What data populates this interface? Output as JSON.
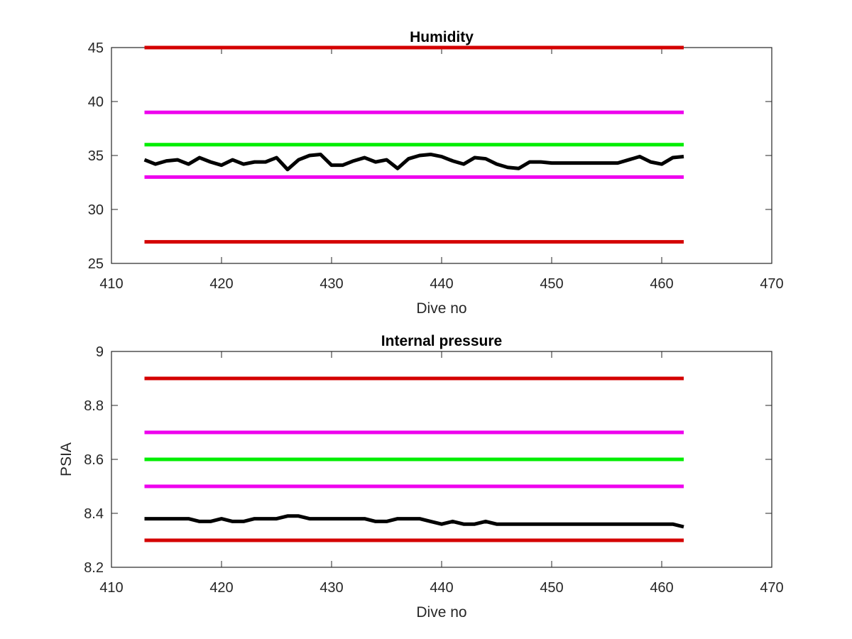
{
  "figure": {
    "background": "#ffffff",
    "axis_color": "#262626"
  },
  "chart_data": [
    {
      "type": "line",
      "title": "Humidity",
      "xlabel": "Dive no",
      "ylabel": "",
      "xlim": [
        410,
        470
      ],
      "ylim": [
        25,
        45
      ],
      "xticks": [
        410,
        420,
        430,
        440,
        450,
        460,
        470
      ],
      "yticks": [
        25,
        30,
        35,
        40,
        45
      ],
      "xtick_labels": [
        "410",
        "420",
        "430",
        "440",
        "450",
        "460",
        "470"
      ],
      "ytick_labels": [
        "25",
        "30",
        "35",
        "40",
        "45"
      ],
      "grid": false,
      "box": true,
      "series": [
        {
          "color": "#d40000",
          "x": [
            413,
            462
          ],
          "y": [
            45,
            45
          ]
        },
        {
          "color": "#ee00ee",
          "x": [
            413,
            462
          ],
          "y": [
            39,
            39
          ]
        },
        {
          "color": "#00ee00",
          "x": [
            413,
            462
          ],
          "y": [
            36,
            36
          ]
        },
        {
          "color": "#ee00ee",
          "x": [
            413,
            462
          ],
          "y": [
            33,
            33
          ]
        },
        {
          "color": "#d40000",
          "x": [
            413,
            462
          ],
          "y": [
            27,
            27
          ]
        },
        {
          "color": "#000000",
          "x": [
            413,
            414,
            415,
            416,
            417,
            418,
            419,
            420,
            421,
            422,
            423,
            424,
            425,
            426,
            427,
            428,
            429,
            430,
            431,
            432,
            433,
            434,
            435,
            436,
            437,
            438,
            439,
            440,
            441,
            442,
            443,
            444,
            445,
            446,
            447,
            448,
            449,
            450,
            451,
            452,
            453,
            454,
            455,
            456,
            457,
            458,
            459,
            460,
            461,
            462
          ],
          "y": [
            34.6,
            34.2,
            34.5,
            34.6,
            34.2,
            34.8,
            34.4,
            34.1,
            34.6,
            34.2,
            34.4,
            34.4,
            34.8,
            33.7,
            34.6,
            35.0,
            35.1,
            34.1,
            34.1,
            34.5,
            34.8,
            34.4,
            34.6,
            33.8,
            34.7,
            35.0,
            35.1,
            34.9,
            34.5,
            34.2,
            34.8,
            34.7,
            34.2,
            33.9,
            33.8,
            34.4,
            34.4,
            34.3,
            34.3,
            34.3,
            34.3,
            34.3,
            34.3,
            34.3,
            34.6,
            34.9,
            34.4,
            34.2,
            34.8,
            34.9
          ]
        }
      ]
    },
    {
      "type": "line",
      "title": "Internal pressure",
      "xlabel": "Dive no",
      "ylabel": "PSIA",
      "xlim": [
        410,
        470
      ],
      "ylim": [
        8.2,
        9
      ],
      "xticks": [
        410,
        420,
        430,
        440,
        450,
        460,
        470
      ],
      "yticks": [
        8.2,
        8.4,
        8.6,
        8.8,
        9
      ],
      "xtick_labels": [
        "410",
        "420",
        "430",
        "440",
        "450",
        "460",
        "470"
      ],
      "ytick_labels": [
        "8.2",
        "8.4",
        "8.6",
        "8.8",
        "9"
      ],
      "grid": false,
      "box": true,
      "series": [
        {
          "color": "#d40000",
          "x": [
            413,
            462
          ],
          "y": [
            8.9,
            8.9
          ]
        },
        {
          "color": "#ee00ee",
          "x": [
            413,
            462
          ],
          "y": [
            8.7,
            8.7
          ]
        },
        {
          "color": "#00ee00",
          "x": [
            413,
            462
          ],
          "y": [
            8.6,
            8.6
          ]
        },
        {
          "color": "#ee00ee",
          "x": [
            413,
            462
          ],
          "y": [
            8.5,
            8.5
          ]
        },
        {
          "color": "#d40000",
          "x": [
            413,
            462
          ],
          "y": [
            8.3,
            8.3
          ]
        },
        {
          "color": "#000000",
          "x": [
            413,
            414,
            415,
            416,
            417,
            418,
            419,
            420,
            421,
            422,
            423,
            424,
            425,
            426,
            427,
            428,
            429,
            430,
            431,
            432,
            433,
            434,
            435,
            436,
            437,
            438,
            439,
            440,
            441,
            442,
            443,
            444,
            445,
            446,
            447,
            448,
            449,
            450,
            451,
            452,
            453,
            454,
            455,
            456,
            457,
            458,
            459,
            460,
            461,
            462
          ],
          "y": [
            8.38,
            8.38,
            8.38,
            8.38,
            8.38,
            8.37,
            8.37,
            8.38,
            8.37,
            8.37,
            8.38,
            8.38,
            8.38,
            8.39,
            8.39,
            8.38,
            8.38,
            8.38,
            8.38,
            8.38,
            8.38,
            8.37,
            8.37,
            8.38,
            8.38,
            8.38,
            8.37,
            8.36,
            8.37,
            8.36,
            8.36,
            8.37,
            8.36,
            8.36,
            8.36,
            8.36,
            8.36,
            8.36,
            8.36,
            8.36,
            8.36,
            8.36,
            8.36,
            8.36,
            8.36,
            8.36,
            8.36,
            8.36,
            8.36,
            8.35
          ]
        }
      ]
    }
  ]
}
